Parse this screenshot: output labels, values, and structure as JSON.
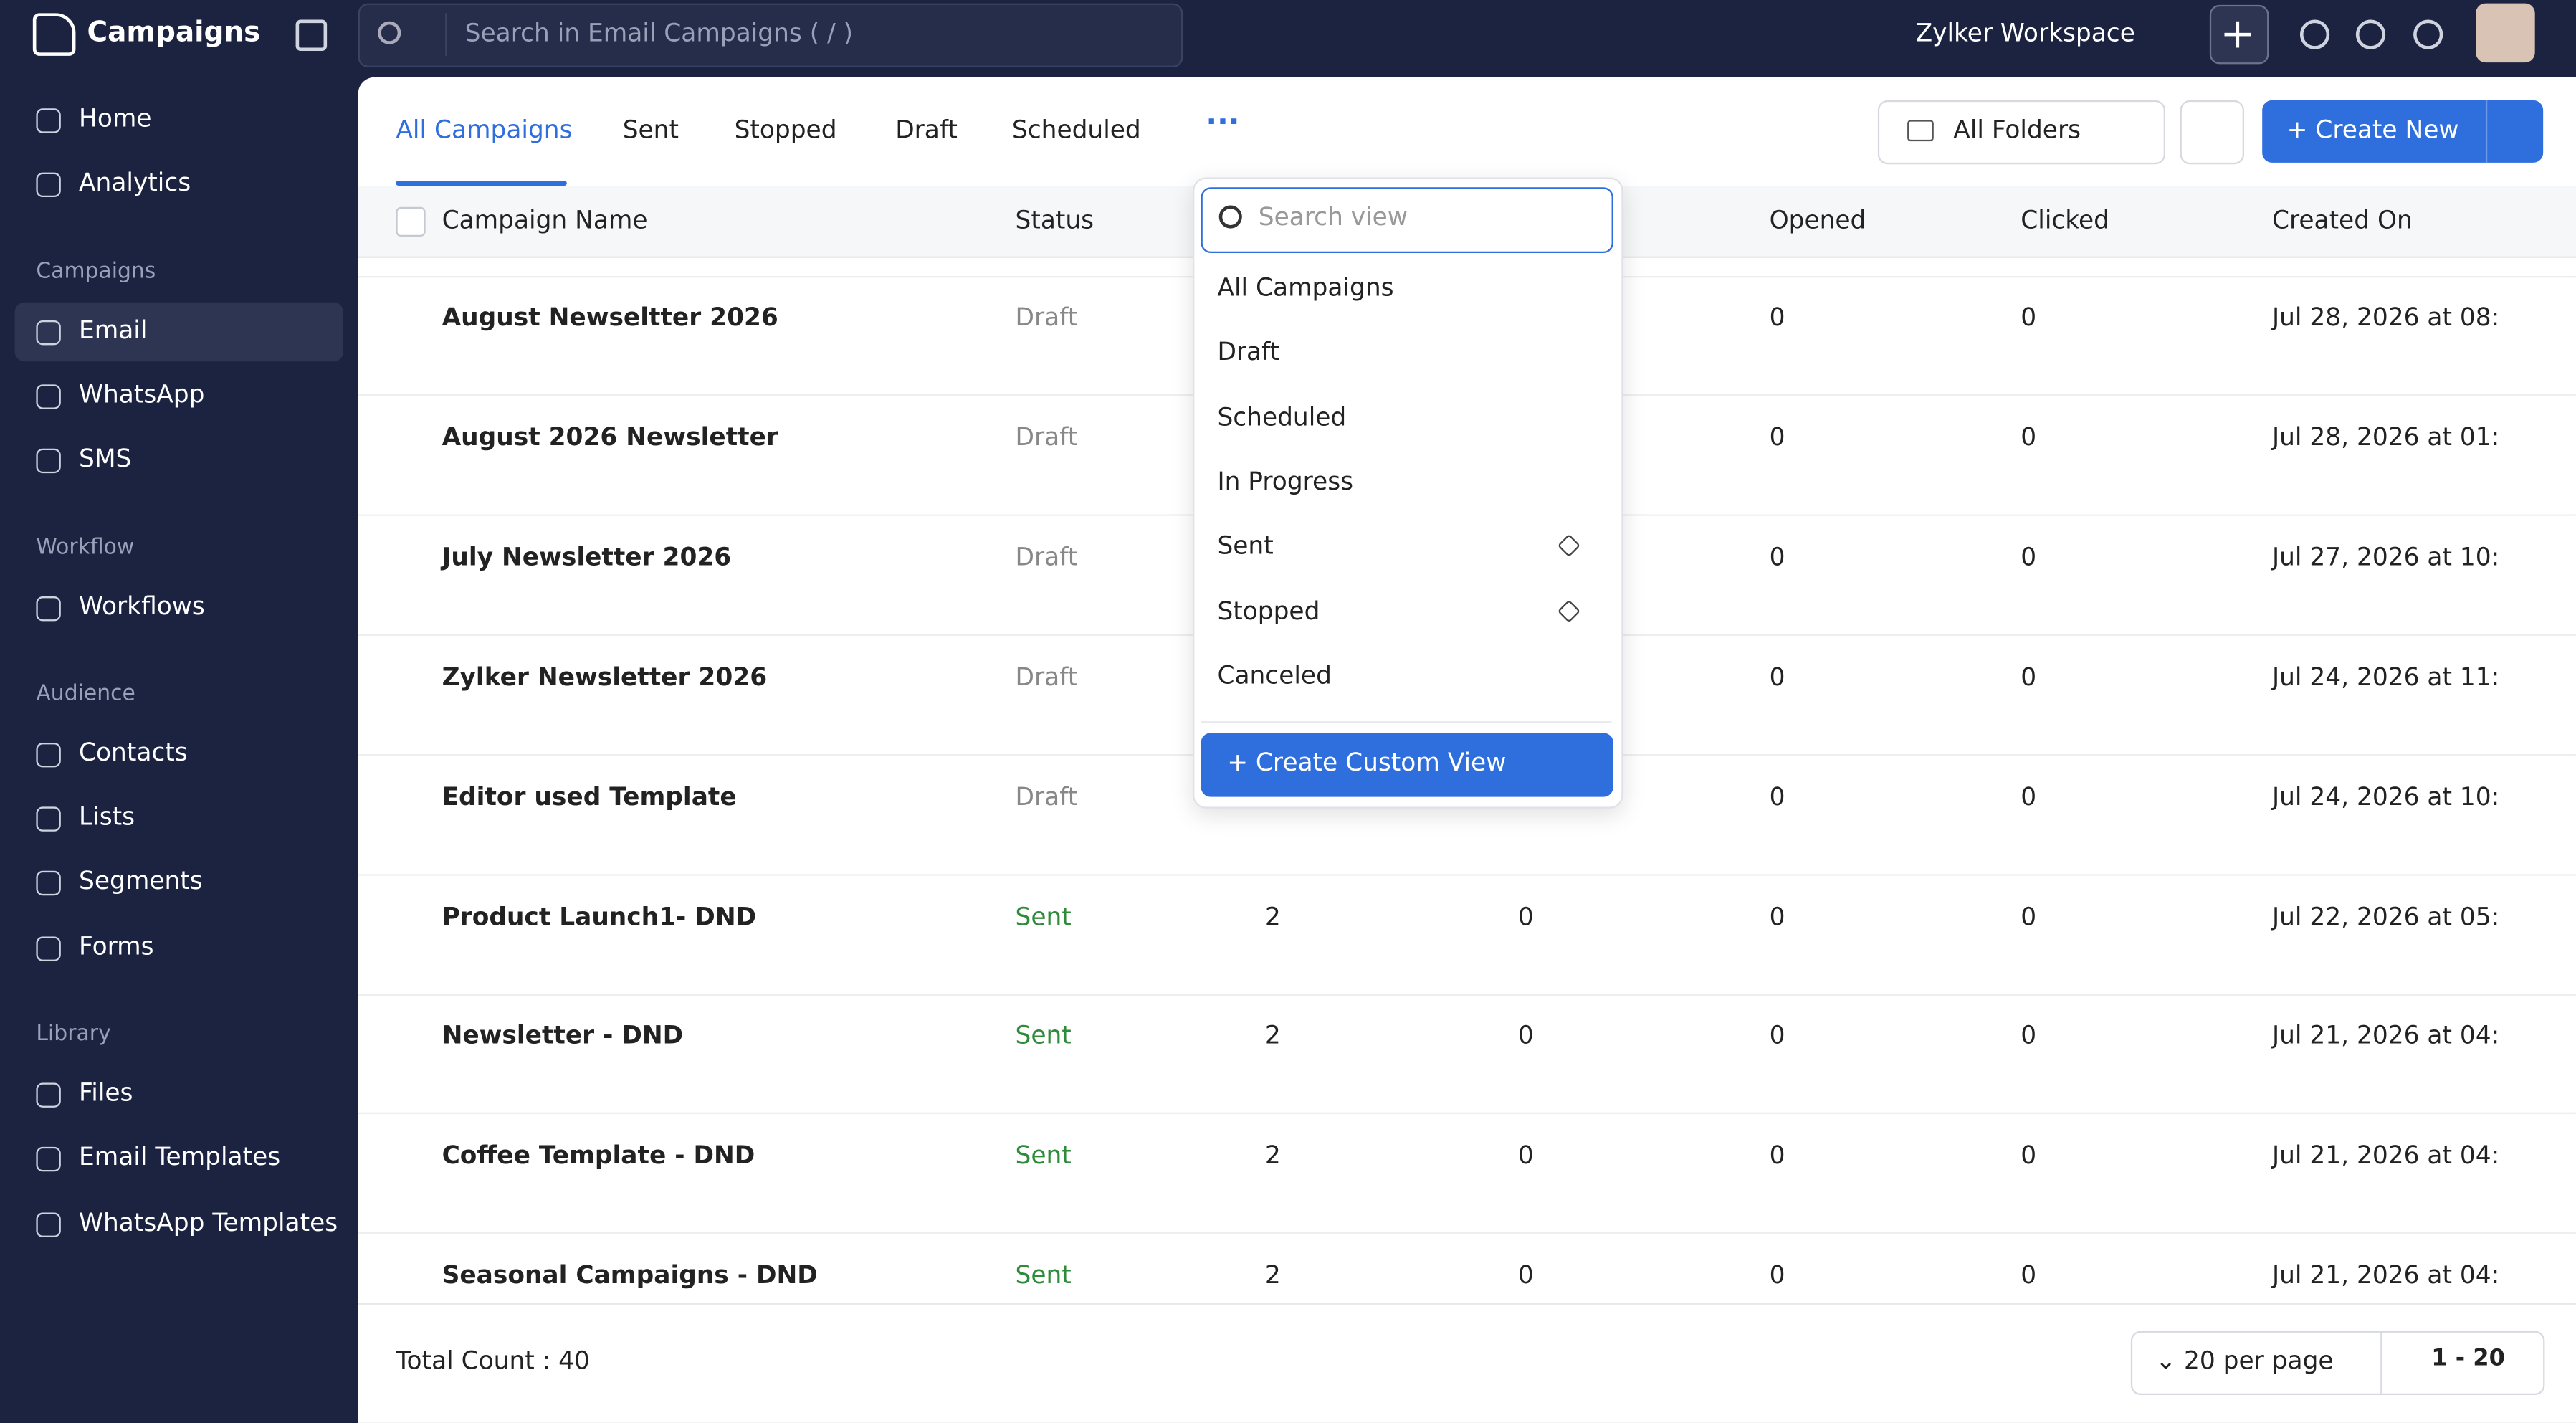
{
  "app": {
    "title": "Campaigns",
    "search_placeholder": "Search in Email Campaigns ( / )",
    "workspace": "Zylker Workspace"
  },
  "sidebar": [
    {
      "items": [
        "Home",
        "Analytics"
      ]
    },
    {
      "title": "Campaigns",
      "items": [
        "Email",
        "WhatsApp",
        "SMS"
      ]
    },
    {
      "title": "Workflow",
      "items": [
        "Workflows"
      ]
    },
    {
      "title": "Audience",
      "items": [
        "Contacts",
        "Lists",
        "Segments",
        "Forms"
      ]
    },
    {
      "title": "Library",
      "items": [
        "Files",
        "Email Templates",
        "WhatsApp Templates"
      ]
    }
  ],
  "sidebar_selected": "Email",
  "tabs": [
    "All Campaigns",
    "Sent",
    "Stopped",
    "Draft",
    "Scheduled"
  ],
  "toolbar": {
    "folders": "All Folders",
    "create": "Create New"
  },
  "table": {
    "headers": {
      "name": "Campaign Name",
      "status": "Status",
      "opened": "Opened",
      "clicked": "Clicked",
      "created": "Created On"
    },
    "rows": [
      {
        "name": "August Newseltter 2026",
        "status": "Draft",
        "opened": 0,
        "clicked": 0,
        "created": "Jul 28, 2026 at 08:"
      },
      {
        "name": "August 2026 Newsletter",
        "status": "Draft",
        "opened": 0,
        "clicked": 0,
        "created": "Jul 28, 2026 at 01:"
      },
      {
        "name": "July Newsletter 2026",
        "status": "Draft",
        "opened": 0,
        "clicked": 0,
        "created": "Jul 27, 2026 at 10:"
      },
      {
        "name": "Zylker Newsletter 2026",
        "status": "Draft",
        "opened": 0,
        "clicked": 0,
        "created": "Jul 24, 2026 at 11:"
      },
      {
        "name": "Editor used Template",
        "status": "Draft",
        "opened": 0,
        "clicked": 0,
        "created": "Jul 24, 2026 at 10:"
      },
      {
        "name": "Product Launch1- DND",
        "status": "Sent",
        "sent": 2,
        "bounced": 0,
        "opened": 0,
        "clicked": 0,
        "created": "Jul 22, 2026 at 05:"
      },
      {
        "name": "Newsletter - DND",
        "status": "Sent",
        "sent": 2,
        "bounced": 0,
        "opened": 0,
        "clicked": 0,
        "created": "Jul 21, 2026 at 04:"
      },
      {
        "name": "Coffee Template - DND",
        "status": "Sent",
        "sent": 2,
        "bounced": 0,
        "opened": 0,
        "clicked": 0,
        "created": "Jul 21, 2026 at 04:"
      },
      {
        "name": "Seasonal Campaigns - DND",
        "status": "Sent",
        "sent": 2,
        "bounced": 0,
        "opened": 0,
        "clicked": 0,
        "created": "Jul 21, 2026 at 04:"
      }
    ]
  },
  "dropdown": {
    "search_placeholder": "Search view",
    "items": [
      {
        "label": "All Campaigns"
      },
      {
        "label": "Draft"
      },
      {
        "label": "Scheduled"
      },
      {
        "label": "In Progress"
      },
      {
        "label": "Sent",
        "pinned": true
      },
      {
        "label": "Stopped",
        "pinned": true
      },
      {
        "label": "Canceled"
      }
    ],
    "action": "Create Custom View"
  },
  "footer": {
    "total": "Total Count : 40",
    "per_page": "20 per page",
    "range": "1 - 20"
  }
}
